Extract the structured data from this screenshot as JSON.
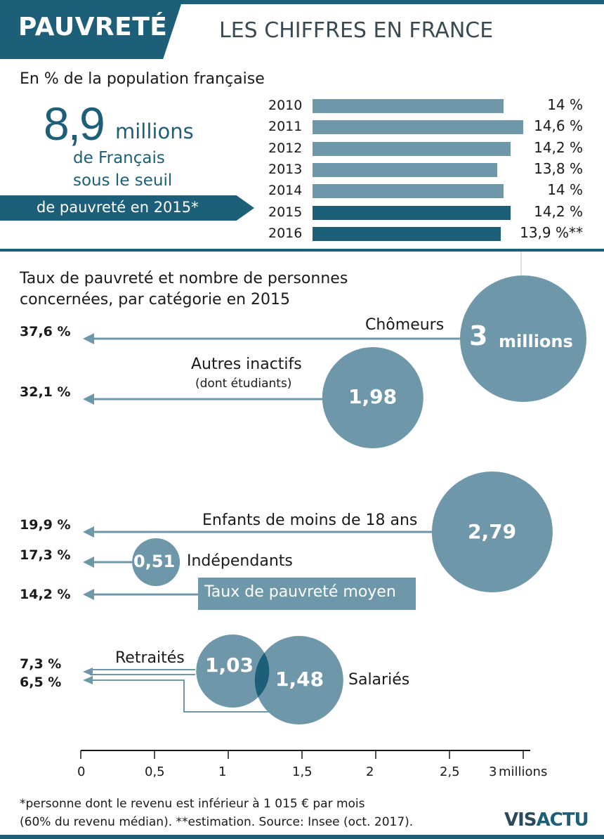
{
  "header": {
    "title": "PAUVRETÉ",
    "subtitle": "LES CHIFFRES EN FRANCE"
  },
  "intro": {
    "population_label": "En % de la population française",
    "big_number": "8,9",
    "big_unit": "millions",
    "line1": "de Français",
    "line2": "sous le seuil",
    "line3": "de pauvreté en 2015*"
  },
  "colors": {
    "dark": "#1d5f79",
    "light": "#6f97aa",
    "overlap": "#1d5f79"
  },
  "chart_data": [
    {
      "type": "bar",
      "orientation": "horizontal",
      "categories": [
        "2010",
        "2011",
        "2012",
        "2013",
        "2014",
        "2015",
        "2016"
      ],
      "values": [
        14.0,
        14.6,
        14.2,
        13.8,
        14.0,
        14.2,
        13.9
      ],
      "labels": [
        "14 %",
        "14,6 %",
        "14,2 %",
        "13,8 %",
        "14 %",
        "14,2 %",
        "13,9 %**"
      ],
      "highlight": [
        "2015",
        "2016"
      ],
      "title": "En % de la population française"
    },
    {
      "type": "scatter",
      "title": "Taux de pauvreté et nombre de personnes concernées, par catégorie en 2015",
      "title_line1": "Taux de pauvreté et nombre de personnes",
      "title_line2": "concernées, par catégorie en 2015",
      "x_axis_ticks": [
        "0",
        "0,5",
        "1",
        "1,5",
        "2",
        "2,5"
      ],
      "x_axis_last": "3",
      "x_unit": "millions",
      "xlim": [
        0,
        3
      ],
      "mean_rate": {
        "label": "Taux de pauvreté moyen",
        "rate": 14.2,
        "rate_label": "14,2 %"
      },
      "points": [
        {
          "name": "Chômeurs",
          "sub": "",
          "rate": 37.6,
          "rate_label": "37,6 %",
          "millions": 3.0,
          "bubble_label": "3",
          "bubble_unit": "millions"
        },
        {
          "name": "Autres inactifs",
          "sub": "(dont étudiants)",
          "rate": 32.1,
          "rate_label": "32,1 %",
          "millions": 1.98,
          "bubble_label": "1,98",
          "bubble_unit": ""
        },
        {
          "name": "Enfants de moins de 18 ans",
          "sub": "",
          "rate": 19.9,
          "rate_label": "19,9 %",
          "millions": 2.79,
          "bubble_label": "2,79",
          "bubble_unit": ""
        },
        {
          "name": "Indépendants",
          "sub": "",
          "rate": 17.3,
          "rate_label": "17,3 %",
          "millions": 0.51,
          "bubble_label": "0,51",
          "bubble_unit": ""
        },
        {
          "name": "Retraités",
          "sub": "",
          "rate": 7.3,
          "rate_label": "7,3 %",
          "millions": 1.03,
          "bubble_label": "1,03",
          "bubble_unit": ""
        },
        {
          "name": "Salariés",
          "sub": "",
          "rate": 6.5,
          "rate_label": "6,5 %",
          "millions": 1.48,
          "bubble_label": "1,48",
          "bubble_unit": ""
        }
      ]
    }
  ],
  "footer": {
    "note1": "*personne dont le revenu est inférieur à 1 015 € par mois",
    "note2": "(60% du revenu médian).  **estimation.  Source: Insee (oct. 2017).",
    "logo_a": "VIS",
    "logo_b": "ACTU"
  }
}
